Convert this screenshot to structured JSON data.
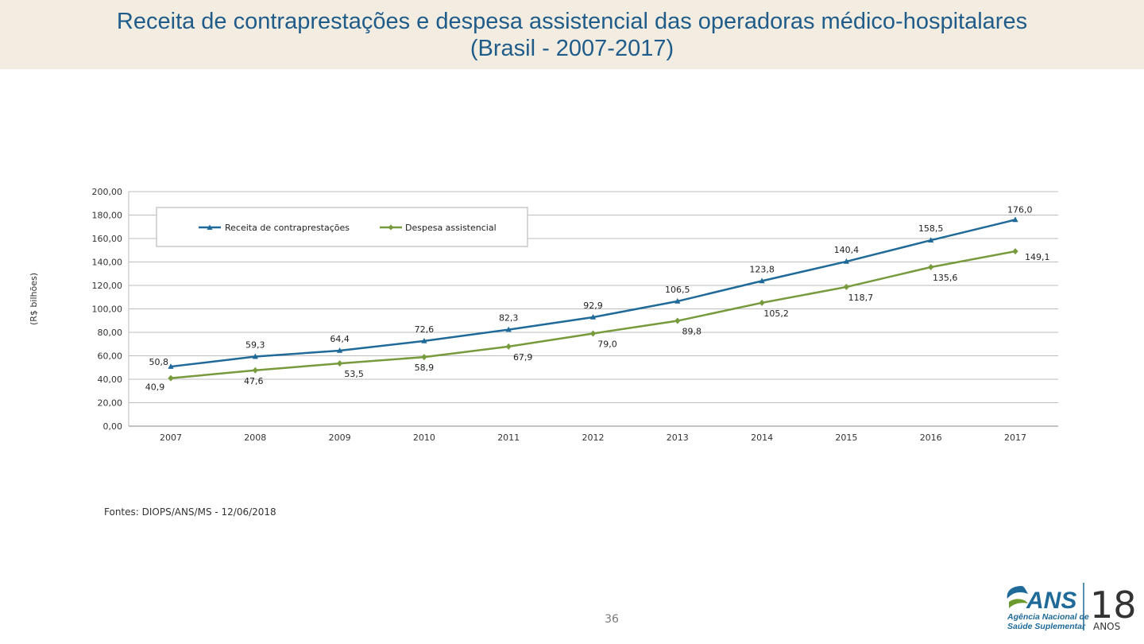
{
  "header": {
    "title_line1": "Receita de contraprestações e despesa assistencial das operadoras médico-hospitalares",
    "title_line2": "(Brasil - 2007-2017)"
  },
  "chart_data": {
    "type": "line",
    "title": "Receita de contraprestações e despesa assistencial das operadoras médico-hospitalares (Brasil - 2007-2017)",
    "xlabel": "",
    "ylabel": "(R$ bilhões)",
    "ylim": [
      0,
      200
    ],
    "yticks": [
      "0,00",
      "20,00",
      "40,00",
      "60,00",
      "80,00",
      "100,00",
      "120,00",
      "140,00",
      "160,00",
      "180,00",
      "200,00"
    ],
    "grid": true,
    "legend_position": "top-left",
    "categories": [
      "2007",
      "2008",
      "2009",
      "2010",
      "2011",
      "2012",
      "2013",
      "2014",
      "2015",
      "2016",
      "2017"
    ],
    "series": [
      {
        "name": "Receita de contraprestações",
        "color": "#1f6a99",
        "marker": "triangle",
        "values": [
          50.8,
          59.3,
          64.4,
          72.6,
          82.3,
          92.9,
          106.5,
          123.8,
          140.4,
          158.5,
          176.0
        ],
        "labels": [
          "50,8",
          "59,3",
          "64,4",
          "72,6",
          "82,3",
          "92,9",
          "106,5",
          "123,8",
          "140,4",
          "158,5",
          "176,0"
        ]
      },
      {
        "name": "Despesa assistencial",
        "color": "#779a3c",
        "marker": "diamond",
        "values": [
          40.9,
          47.6,
          53.5,
          58.9,
          67.9,
          79.0,
          89.8,
          105.2,
          118.7,
          135.6,
          149.1
        ],
        "labels": [
          "40,9",
          "47,6",
          "53,5",
          "58,9",
          "67,9",
          "79,0",
          "89,8",
          "105,2",
          "118,7",
          "135,6",
          "149,1"
        ]
      }
    ]
  },
  "footer": {
    "source": "Fontes: DIOPS/ANS/MS - 12/06/2018",
    "page_number": "36"
  },
  "logo": {
    "brand": "ANS",
    "line1": "Agência Nacional de",
    "line2": "Saúde Suplementar",
    "years": "18",
    "years_label": "ANOS"
  }
}
